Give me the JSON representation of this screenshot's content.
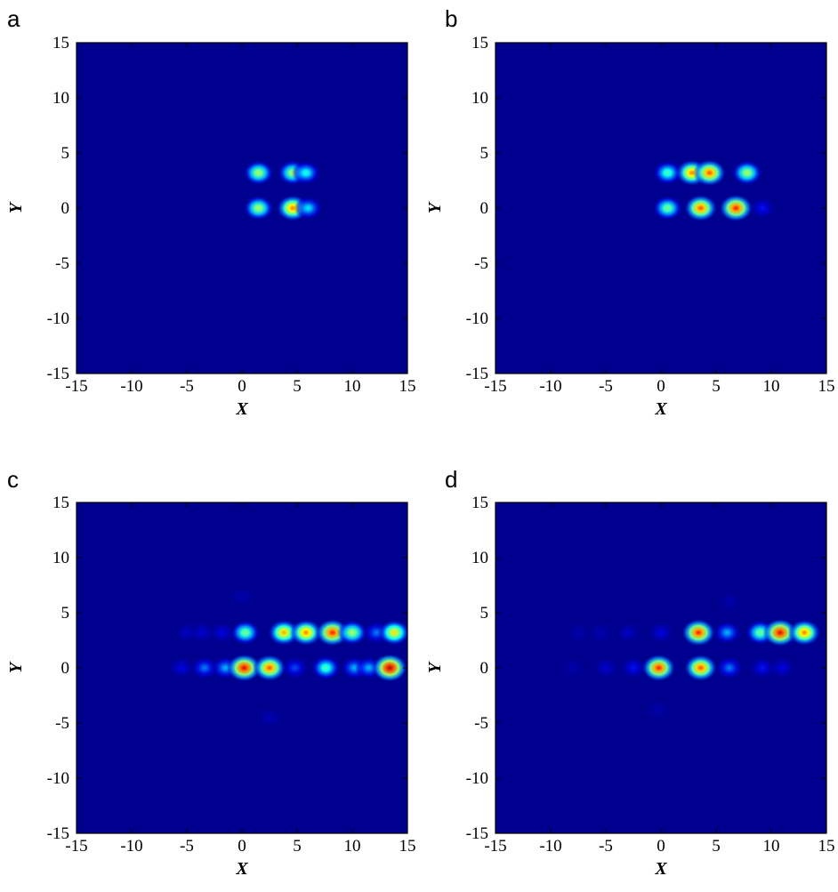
{
  "chart_data": [
    {
      "type": "heatmap",
      "panel_label": "a",
      "xlabel": "X",
      "ylabel": "Y",
      "xlim": [
        -15,
        15
      ],
      "ylim": [
        -15,
        15
      ],
      "xticks": [
        -15,
        -10,
        -5,
        0,
        5,
        10,
        15
      ],
      "yticks": [
        15,
        10,
        5,
        0,
        -5,
        -10,
        -15
      ],
      "colormap": "jet",
      "background": "#00008f",
      "spots": [
        {
          "x": 1.5,
          "y": 3.2,
          "value": 0.55
        },
        {
          "x": 4.6,
          "y": 3.2,
          "value": 0.55
        },
        {
          "x": 5.8,
          "y": 3.2,
          "value": 0.4
        },
        {
          "x": 1.5,
          "y": 0.0,
          "value": 0.55
        },
        {
          "x": 4.6,
          "y": 0.0,
          "value": 0.75
        },
        {
          "x": 6.0,
          "y": 0.0,
          "value": 0.35
        }
      ]
    },
    {
      "type": "heatmap",
      "panel_label": "b",
      "xlabel": "X",
      "ylabel": "Y",
      "xlim": [
        -15,
        15
      ],
      "ylim": [
        -15,
        15
      ],
      "xticks": [
        -15,
        -10,
        -5,
        0,
        5,
        10,
        15
      ],
      "yticks": [
        15,
        10,
        5,
        0,
        -5,
        -10,
        -15
      ],
      "colormap": "jet",
      "background": "#00008f",
      "spots": [
        {
          "x": 0.6,
          "y": 3.2,
          "value": 0.45
        },
        {
          "x": 2.8,
          "y": 3.2,
          "value": 0.75
        },
        {
          "x": 4.4,
          "y": 3.2,
          "value": 0.8
        },
        {
          "x": 7.8,
          "y": 3.2,
          "value": 0.55
        },
        {
          "x": 0.6,
          "y": 0.0,
          "value": 0.5
        },
        {
          "x": 3.6,
          "y": 0.0,
          "value": 0.8
        },
        {
          "x": 6.8,
          "y": 0.0,
          "value": 0.85
        },
        {
          "x": 9.2,
          "y": 0.0,
          "value": 0.15
        }
      ]
    },
    {
      "type": "heatmap",
      "panel_label": "c",
      "xlabel": "X",
      "ylabel": "Y",
      "xlim": [
        -15,
        15
      ],
      "ylim": [
        -15,
        15
      ],
      "xticks": [
        -15,
        -10,
        -5,
        0,
        5,
        10,
        15
      ],
      "yticks": [
        15,
        10,
        5,
        0,
        -5,
        -10,
        -15
      ],
      "colormap": "jet",
      "background": "#00008f",
      "spots": [
        {
          "x": -5.0,
          "y": 3.2,
          "value": 0.08
        },
        {
          "x": -3.6,
          "y": 3.2,
          "value": 0.1
        },
        {
          "x": -1.8,
          "y": 3.2,
          "value": 0.12
        },
        {
          "x": 0.3,
          "y": 3.2,
          "value": 0.5
        },
        {
          "x": 3.8,
          "y": 3.2,
          "value": 0.7
        },
        {
          "x": 5.8,
          "y": 3.2,
          "value": 0.75
        },
        {
          "x": 8.2,
          "y": 3.2,
          "value": 0.85
        },
        {
          "x": 10.0,
          "y": 3.2,
          "value": 0.55
        },
        {
          "x": 12.2,
          "y": 3.2,
          "value": 0.25
        },
        {
          "x": 13.8,
          "y": 3.2,
          "value": 0.65
        },
        {
          "x": -5.5,
          "y": 0.0,
          "value": 0.12
        },
        {
          "x": -3.4,
          "y": 0.0,
          "value": 0.25
        },
        {
          "x": -1.5,
          "y": 0.0,
          "value": 0.3
        },
        {
          "x": 0.2,
          "y": 0.0,
          "value": 0.9
        },
        {
          "x": 2.5,
          "y": 0.0,
          "value": 0.8
        },
        {
          "x": 4.8,
          "y": 0.0,
          "value": 0.2
        },
        {
          "x": 7.6,
          "y": 0.0,
          "value": 0.45
        },
        {
          "x": 10.2,
          "y": 0.0,
          "value": 0.3
        },
        {
          "x": 11.5,
          "y": 0.0,
          "value": 0.3
        },
        {
          "x": 13.4,
          "y": 0.0,
          "value": 0.95
        },
        {
          "x": 2.5,
          "y": -4.5,
          "value": 0.06
        },
        {
          "x": 0.0,
          "y": 6.5,
          "value": 0.05
        }
      ]
    },
    {
      "type": "heatmap",
      "panel_label": "d",
      "xlabel": "X",
      "ylabel": "Y",
      "xlim": [
        -15,
        15
      ],
      "ylim": [
        -15,
        15
      ],
      "xticks": [
        -15,
        -10,
        -5,
        0,
        5,
        10,
        15
      ],
      "yticks": [
        15,
        10,
        5,
        0,
        -5,
        -10,
        -15
      ],
      "colormap": "jet",
      "background": "#00008f",
      "spots": [
        {
          "x": -7.5,
          "y": 3.2,
          "value": 0.05
        },
        {
          "x": -5.5,
          "y": 3.2,
          "value": 0.06
        },
        {
          "x": -3.0,
          "y": 3.2,
          "value": 0.08
        },
        {
          "x": 0.0,
          "y": 3.2,
          "value": 0.12
        },
        {
          "x": 3.4,
          "y": 3.2,
          "value": 0.85
        },
        {
          "x": 6.0,
          "y": 3.2,
          "value": 0.3
        },
        {
          "x": 9.0,
          "y": 3.2,
          "value": 0.5
        },
        {
          "x": 10.8,
          "y": 3.2,
          "value": 0.9
        },
        {
          "x": 13.0,
          "y": 3.2,
          "value": 0.75
        },
        {
          "x": -8.0,
          "y": 0.0,
          "value": 0.05
        },
        {
          "x": -5.0,
          "y": 0.0,
          "value": 0.1
        },
        {
          "x": -2.5,
          "y": 0.0,
          "value": 0.15
        },
        {
          "x": -0.2,
          "y": 0.0,
          "value": 0.85
        },
        {
          "x": 3.6,
          "y": 0.0,
          "value": 0.8
        },
        {
          "x": 6.2,
          "y": 0.0,
          "value": 0.25
        },
        {
          "x": 9.2,
          "y": 0.0,
          "value": 0.15
        },
        {
          "x": 11.0,
          "y": 0.0,
          "value": 0.12
        },
        {
          "x": -0.3,
          "y": -3.8,
          "value": 0.05
        },
        {
          "x": 6.2,
          "y": 6.0,
          "value": 0.05
        }
      ]
    }
  ]
}
